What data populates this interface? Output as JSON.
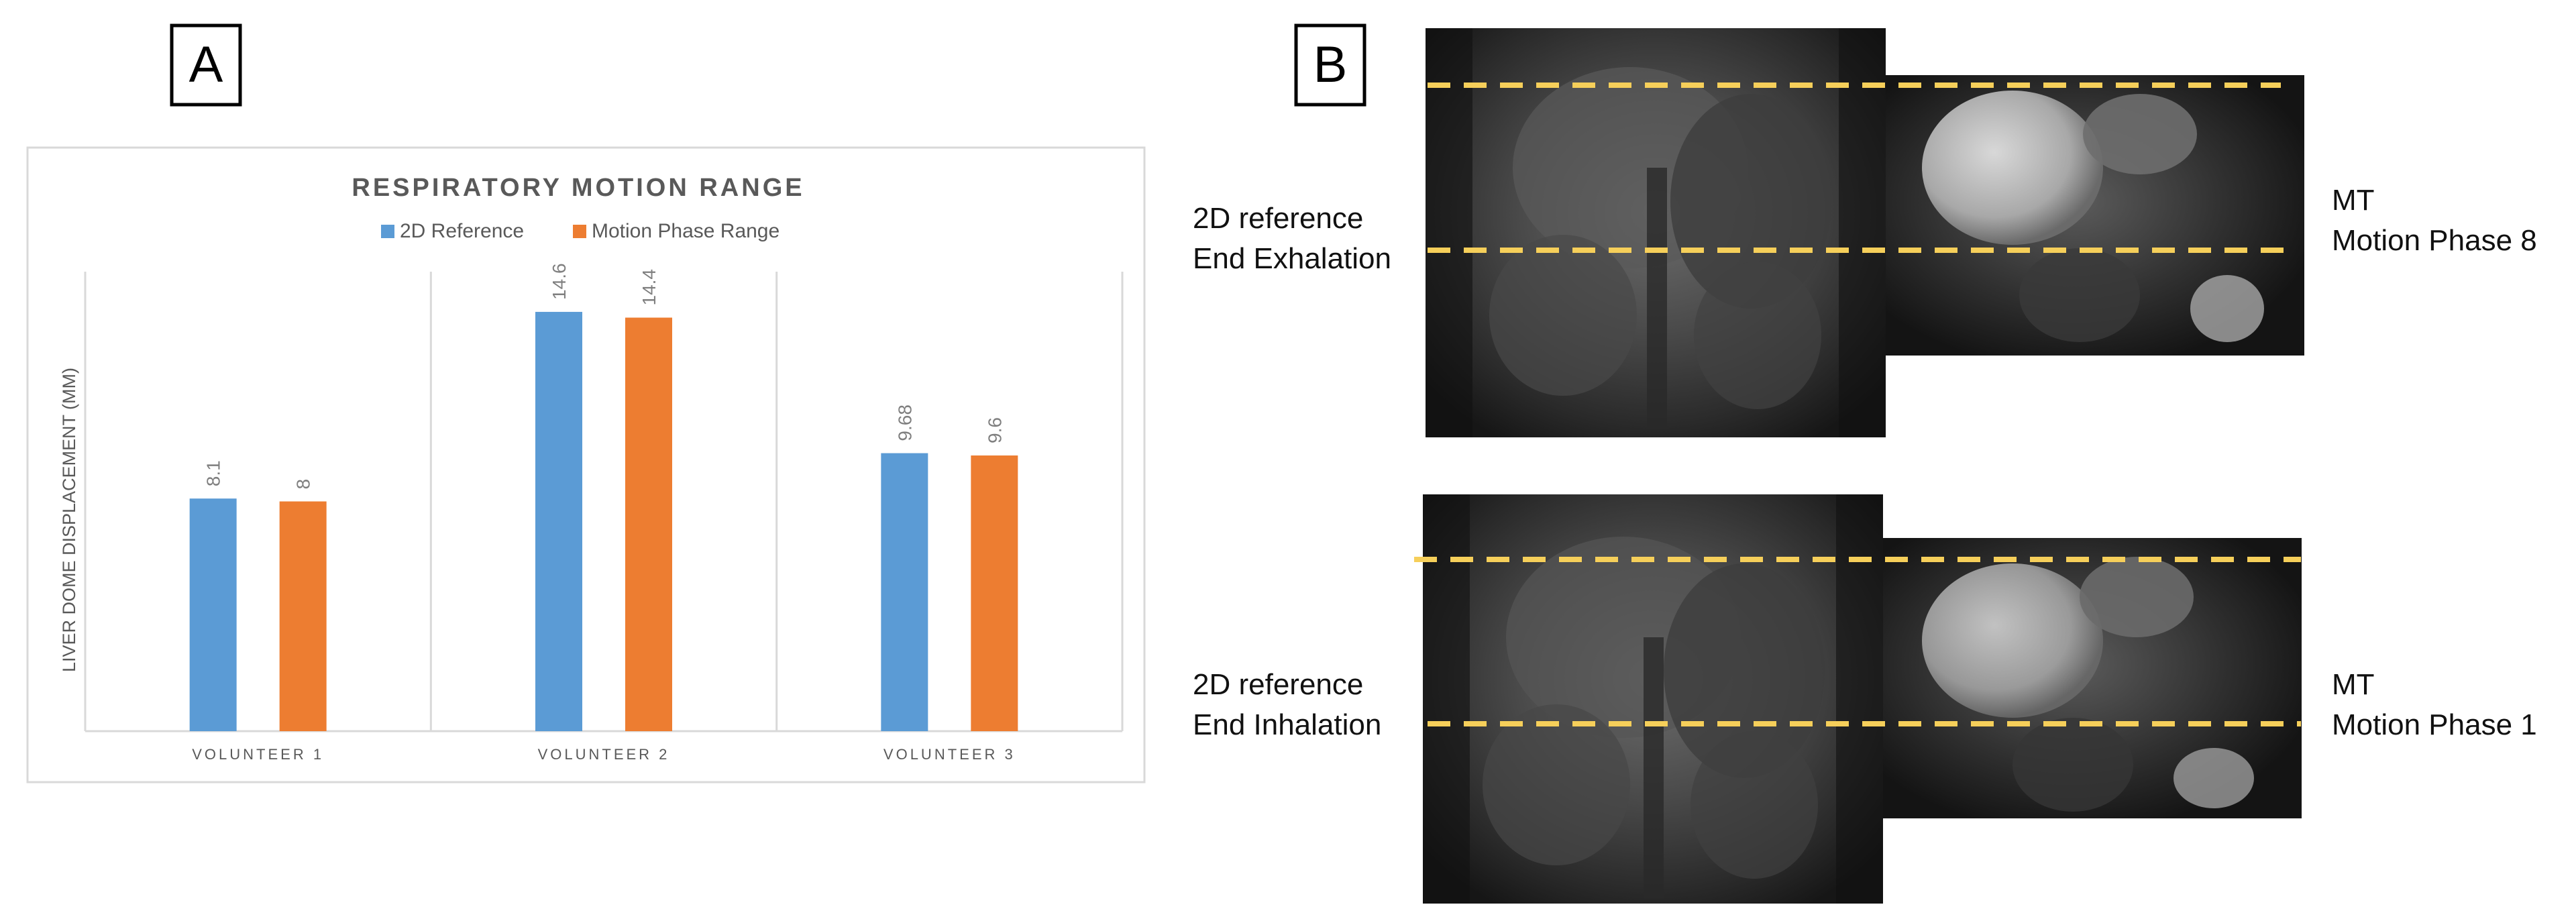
{
  "panel_a": {
    "label": "A"
  },
  "panel_b": {
    "label": "B",
    "rows": [
      {
        "left_line1": "2D reference",
        "left_line2": "End Exhalation",
        "right_line1": "MT",
        "right_line2": "Motion Phase 8"
      },
      {
        "left_line1": "2D reference",
        "left_line2": "End Inhalation",
        "right_line1": "MT",
        "right_line2": "Motion Phase 1"
      }
    ],
    "dash_color": "#f6cf5a"
  },
  "chart_data": {
    "type": "bar",
    "title": "RESPIRATORY MOTION RANGE",
    "ylabel": "LIVER DOME DISPLACEMENT (MM)",
    "xlabel": "",
    "categories": [
      "VOLUNTEER 1",
      "VOLUNTEER 2",
      "VOLUNTEER 3"
    ],
    "series": [
      {
        "name": "2D Reference",
        "values": [
          8.1,
          14.6,
          9.68
        ],
        "labels": [
          "8.1",
          "14.6",
          "9.68"
        ],
        "color": "#5b9bd5"
      },
      {
        "name": "Motion Phase Range",
        "values": [
          8,
          14.4,
          9.6
        ],
        "labels": [
          "8",
          "14.4",
          "9.6"
        ],
        "color": "#ed7d31"
      }
    ],
    "ylim": [
      0,
      16
    ],
    "grid": "vertical category separators",
    "legend": "top-center"
  }
}
